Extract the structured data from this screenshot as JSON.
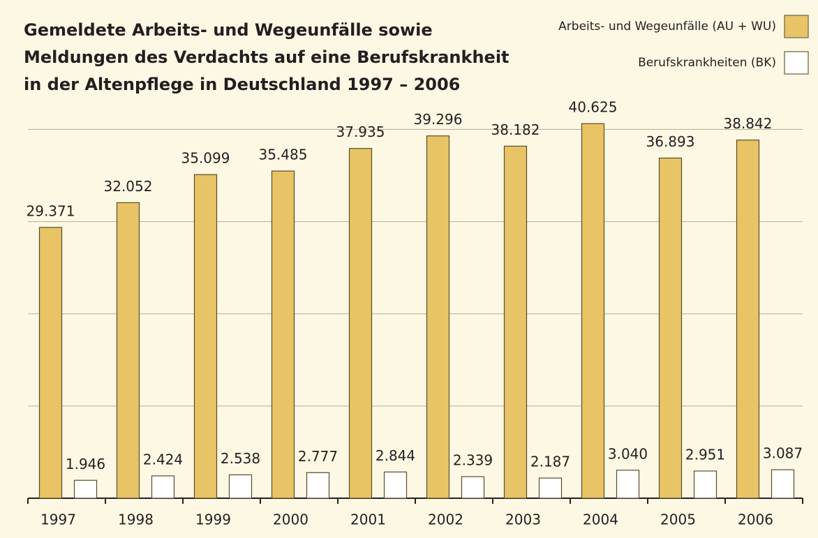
{
  "chart_data": {
    "type": "bar",
    "title": [
      "Gemeldete Arbeits- und Wegeunfälle sowie",
      "Meldungen des Verdachts auf eine Berufskrankheit",
      "in der Altenpflege in Deutschland 1997 – 2006"
    ],
    "categories": [
      "1997",
      "1998",
      "1999",
      "2000",
      "2001",
      "2002",
      "2003",
      "2004",
      "2005",
      "2006"
    ],
    "series": [
      {
        "name": "Arbeits- und Wegeunfälle (AU + WU)",
        "color": "#e8c466",
        "values": [
          29371,
          32052,
          35099,
          35485,
          37935,
          39296,
          38182,
          40625,
          36893,
          38842
        ],
        "value_labels": [
          "29.371",
          "32.052",
          "35.099",
          "35.485",
          "37.935",
          "39.296",
          "38.182",
          "40.625",
          "36.893",
          "38.842"
        ]
      },
      {
        "name": "Berufskrankheiten (BK)",
        "color": "#ffffff",
        "values": [
          1946,
          2424,
          2538,
          2777,
          2844,
          2339,
          2187,
          3040,
          2951,
          3087
        ],
        "value_labels": [
          "1.946",
          "2.424",
          "2.538",
          "2.777",
          "2.844",
          "2.339",
          "2.187",
          "3.040",
          "2.951",
          "3.087"
        ]
      }
    ],
    "ylim": [
      0,
      42000
    ],
    "yticks": [
      0,
      10000,
      20000,
      30000,
      40000
    ],
    "grid": true,
    "legend": "top-right"
  }
}
